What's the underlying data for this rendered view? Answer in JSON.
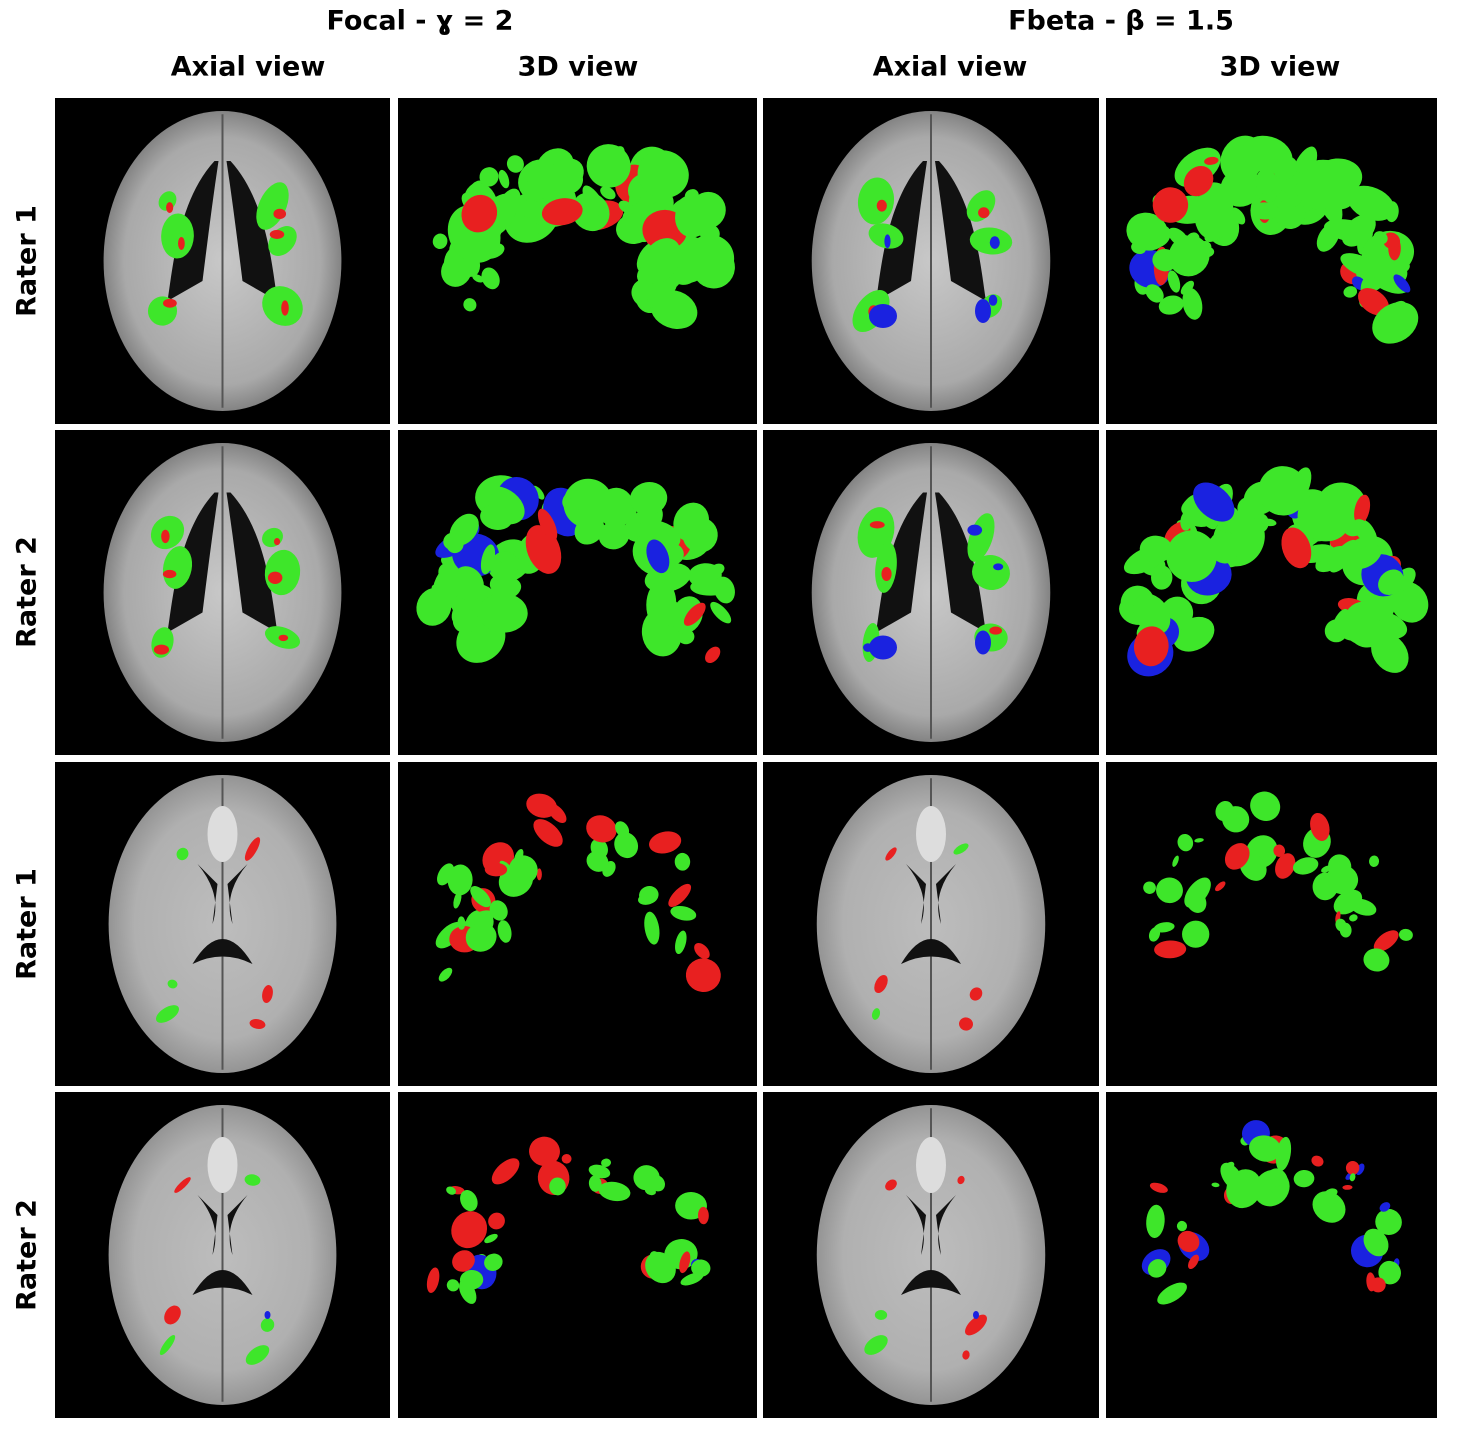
{
  "header": {
    "groups": [
      "Focal - ɣ = 2",
      "Fbeta - β = 1.5"
    ],
    "columns": [
      "Axial view",
      "3D view",
      "Axial view",
      "3D view"
    ]
  },
  "rows": [
    "Rater 1",
    "Rater 2",
    "Rater 1",
    "Rater 2"
  ]
}
